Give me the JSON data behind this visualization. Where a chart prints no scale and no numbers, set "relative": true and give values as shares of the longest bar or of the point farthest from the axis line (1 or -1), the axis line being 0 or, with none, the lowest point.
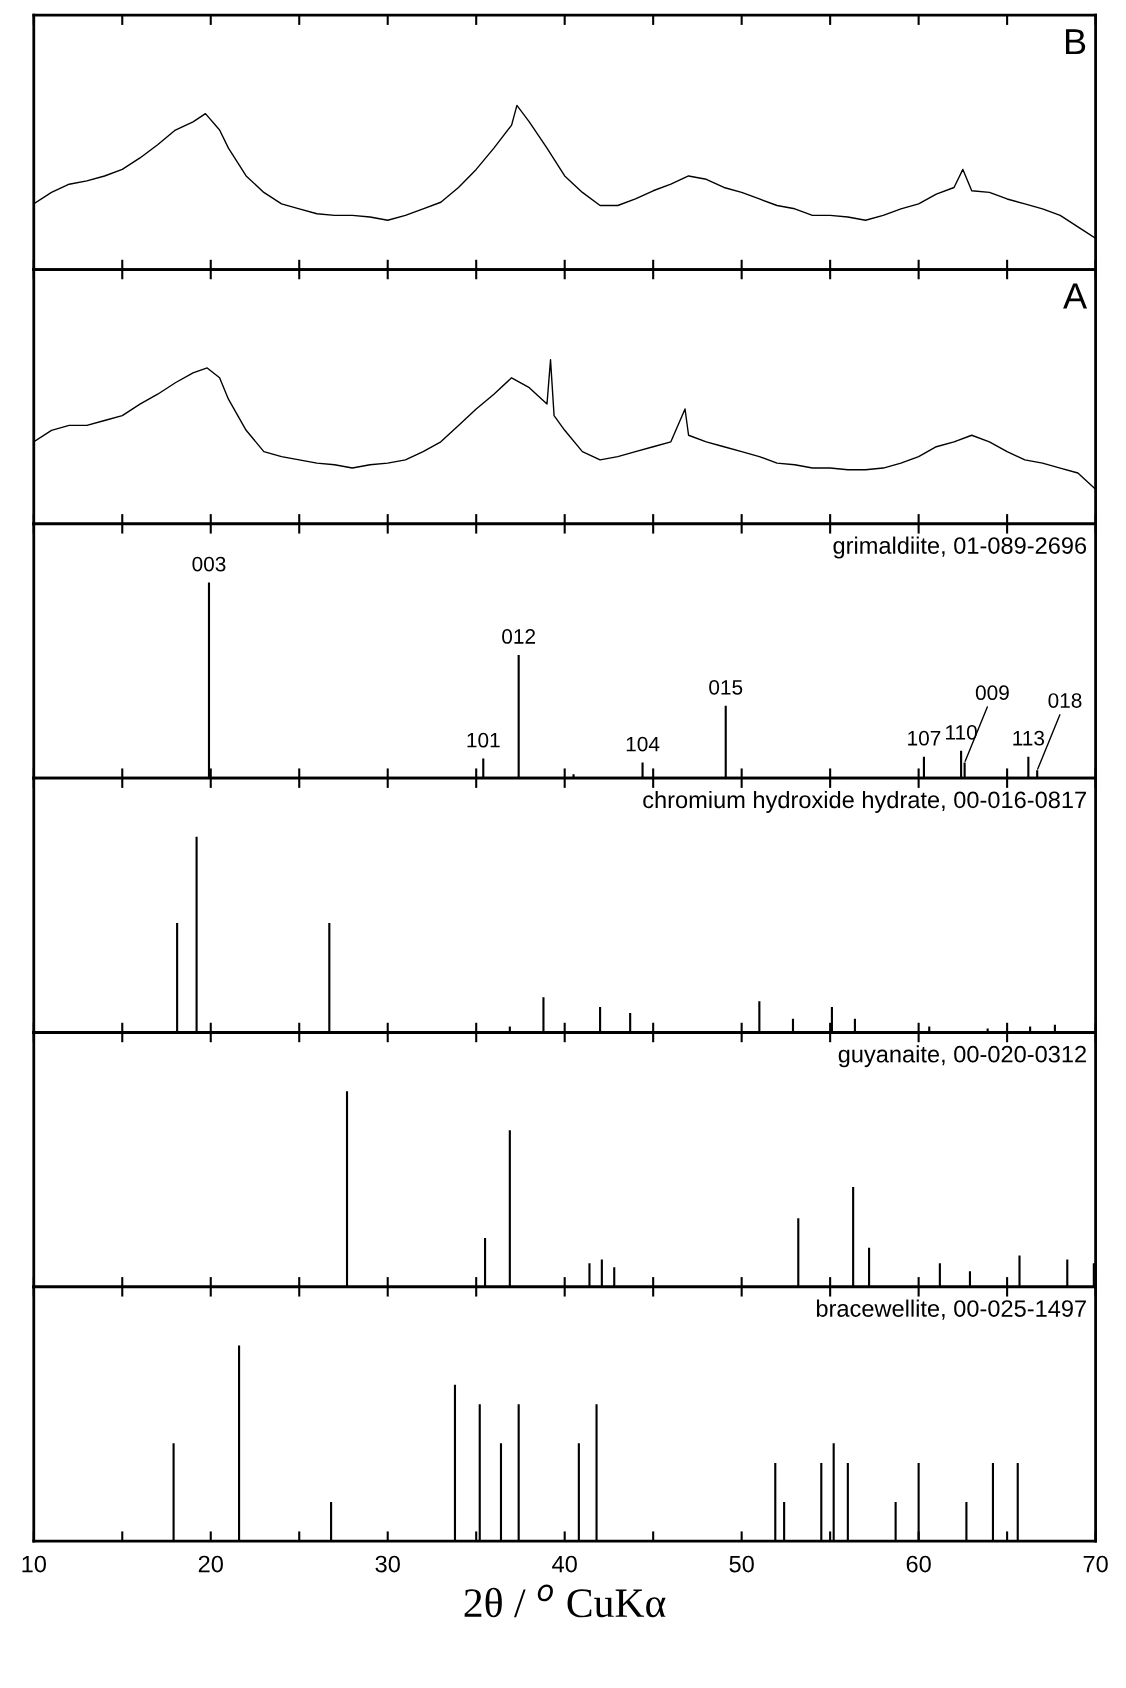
{
  "chart_data": [
    {
      "type": "line",
      "title": "B",
      "relative": true,
      "xlim": [
        10,
        70
      ],
      "xticks": [
        {
          "value": 10,
          "label": null
        },
        {
          "value": 15,
          "label": null
        },
        {
          "value": 20,
          "label": null
        },
        {
          "value": 25,
          "label": null
        },
        {
          "value": 30,
          "label": null
        },
        {
          "value": 35,
          "label": null
        },
        {
          "value": 40,
          "label": null
        },
        {
          "value": 45,
          "label": null
        },
        {
          "value": 50,
          "label": null
        },
        {
          "value": 55,
          "label": null
        },
        {
          "value": 60,
          "label": null
        },
        {
          "value": 65,
          "label": null
        },
        {
          "value": 70,
          "label": null
        }
      ],
      "tick_labels": false,
      "grid": false,
      "series": [
        {
          "color": "#000000",
          "x": [
            10,
            11,
            12,
            13,
            14,
            15,
            16,
            17,
            18,
            19,
            19.7,
            20.5,
            21,
            22,
            23,
            24,
            25,
            26,
            27,
            28,
            29,
            30,
            31,
            32,
            33,
            34,
            35,
            36,
            37,
            37.3,
            38,
            39,
            40,
            41,
            42,
            43,
            44,
            45,
            46,
            47,
            48,
            49,
            50,
            51,
            52,
            53,
            54,
            55,
            56,
            57,
            58,
            59,
            60,
            61,
            62,
            62.5,
            63,
            64,
            65,
            66,
            67,
            68,
            69,
            70
          ],
          "values": [
            0.4,
            0.47,
            0.52,
            0.54,
            0.57,
            0.61,
            0.68,
            0.76,
            0.85,
            0.9,
            0.95,
            0.85,
            0.74,
            0.57,
            0.47,
            0.4,
            0.37,
            0.34,
            0.33,
            0.33,
            0.32,
            0.3,
            0.33,
            0.37,
            0.41,
            0.5,
            0.61,
            0.74,
            0.88,
            1.0,
            0.9,
            0.74,
            0.57,
            0.47,
            0.39,
            0.39,
            0.43,
            0.48,
            0.52,
            0.57,
            0.55,
            0.5,
            0.47,
            0.43,
            0.39,
            0.37,
            0.33,
            0.33,
            0.32,
            0.3,
            0.33,
            0.37,
            0.4,
            0.46,
            0.5,
            0.61,
            0.48,
            0.47,
            0.43,
            0.4,
            0.37,
            0.33,
            0.26,
            0.19
          ]
        }
      ]
    },
    {
      "type": "line",
      "title": "A",
      "relative": true,
      "xlim": [
        10,
        70
      ],
      "xticks": [
        {
          "value": 10,
          "label": null
        },
        {
          "value": 15,
          "label": null
        },
        {
          "value": 20,
          "label": null
        },
        {
          "value": 25,
          "label": null
        },
        {
          "value": 30,
          "label": null
        },
        {
          "value": 35,
          "label": null
        },
        {
          "value": 40,
          "label": null
        },
        {
          "value": 45,
          "label": null
        },
        {
          "value": 50,
          "label": null
        },
        {
          "value": 55,
          "label": null
        },
        {
          "value": 60,
          "label": null
        },
        {
          "value": 65,
          "label": null
        },
        {
          "value": 70,
          "label": null
        }
      ],
      "tick_labels": false,
      "grid": false,
      "series": [
        {
          "color": "#000000",
          "x": [
            10,
            11,
            12,
            13,
            14,
            15,
            16,
            17,
            18,
            19,
            19.8,
            20.5,
            21,
            22,
            23,
            24,
            25,
            26,
            27,
            28,
            29,
            30,
            31,
            32,
            33,
            34,
            35,
            36,
            37,
            38,
            39,
            39.2,
            39.4,
            40,
            41,
            42,
            43,
            44,
            45,
            46,
            46.8,
            47,
            48,
            49,
            50,
            51,
            52,
            53,
            54,
            55,
            56,
            57,
            58,
            59,
            60,
            61,
            62,
            63,
            64,
            65,
            66,
            67,
            68,
            69,
            70
          ],
          "values": [
            0.5,
            0.57,
            0.6,
            0.6,
            0.63,
            0.66,
            0.73,
            0.79,
            0.86,
            0.92,
            0.95,
            0.89,
            0.76,
            0.57,
            0.44,
            0.41,
            0.39,
            0.37,
            0.36,
            0.34,
            0.36,
            0.37,
            0.39,
            0.44,
            0.5,
            0.6,
            0.7,
            0.79,
            0.89,
            0.83,
            0.73,
            1.0,
            0.66,
            0.57,
            0.44,
            0.39,
            0.41,
            0.44,
            0.47,
            0.5,
            0.7,
            0.54,
            0.5,
            0.47,
            0.44,
            0.41,
            0.37,
            0.36,
            0.34,
            0.34,
            0.33,
            0.33,
            0.34,
            0.37,
            0.41,
            0.47,
            0.5,
            0.54,
            0.5,
            0.44,
            0.39,
            0.37,
            0.34,
            0.31,
            0.21
          ]
        }
      ]
    },
    {
      "type": "bar",
      "title": "grimaldiite, 01-089-2696",
      "relative": true,
      "xlim": [
        10,
        70
      ],
      "xticks": [
        {
          "value": 10,
          "label": null
        },
        {
          "value": 15,
          "label": null
        },
        {
          "value": 20,
          "label": null
        },
        {
          "value": 25,
          "label": null
        },
        {
          "value": 30,
          "label": null
        },
        {
          "value": 35,
          "label": null
        },
        {
          "value": 40,
          "label": null
        },
        {
          "value": 45,
          "label": null
        },
        {
          "value": 50,
          "label": null
        },
        {
          "value": 55,
          "label": null
        },
        {
          "value": 60,
          "label": null
        },
        {
          "value": 65,
          "label": null
        },
        {
          "value": 70,
          "label": null
        }
      ],
      "tick_labels": false,
      "grid": false,
      "series": [
        {
          "color": "#000000",
          "x": [
            19.9,
            35.4,
            37.4,
            40.5,
            44.4,
            49.1,
            60.3,
            62.4,
            62.6,
            66.2,
            66.7
          ],
          "values": [
            1.0,
            0.1,
            0.63,
            0.02,
            0.08,
            0.37,
            0.11,
            0.14,
            0.08,
            0.11,
            0.04
          ]
        }
      ],
      "annotations": [
        {
          "text": "003",
          "x": 19.9,
          "y": 1.0
        },
        {
          "text": "101",
          "x": 35.4,
          "y": 0.1
        },
        {
          "text": "012",
          "x": 37.4,
          "y": 0.63
        },
        {
          "text": "104",
          "x": 44.4,
          "y": 0.08
        },
        {
          "text": "015",
          "x": 49.1,
          "y": 0.37
        },
        {
          "text": "107",
          "x": 60.3,
          "y": 0.11
        },
        {
          "text": "110",
          "x": 62.4,
          "y": 0.14
        },
        {
          "text": "009",
          "x": 62.6,
          "y": 0.08
        },
        {
          "text": "113",
          "x": 66.2,
          "y": 0.11
        },
        {
          "text": "018",
          "x": 66.7,
          "y": 0.04
        }
      ]
    },
    {
      "type": "bar",
      "title": "chromium hydroxide hydrate, 00-016-0817",
      "relative": true,
      "xlim": [
        10,
        70
      ],
      "xticks": [
        {
          "value": 10,
          "label": null
        },
        {
          "value": 15,
          "label": null
        },
        {
          "value": 20,
          "label": null
        },
        {
          "value": 25,
          "label": null
        },
        {
          "value": 30,
          "label": null
        },
        {
          "value": 35,
          "label": null
        },
        {
          "value": 40,
          "label": null
        },
        {
          "value": 45,
          "label": null
        },
        {
          "value": 50,
          "label": null
        },
        {
          "value": 55,
          "label": null
        },
        {
          "value": 60,
          "label": null
        },
        {
          "value": 65,
          "label": null
        },
        {
          "value": 70,
          "label": null
        }
      ],
      "tick_labels": false,
      "grid": false,
      "series": [
        {
          "color": "#000000",
          "x": [
            18.1,
            19.2,
            26.7,
            36.9,
            38.8,
            42.0,
            43.7,
            51.0,
            52.9,
            55.1,
            56.4,
            60.6,
            63.9,
            66.3,
            67.7
          ],
          "values": [
            0.56,
            1.0,
            0.56,
            0.03,
            0.18,
            0.13,
            0.1,
            0.16,
            0.07,
            0.13,
            0.07,
            0.03,
            0.02,
            0.03,
            0.04
          ]
        }
      ]
    },
    {
      "type": "bar",
      "title": "guyanaite, 00-020-0312",
      "relative": true,
      "xlim": [
        10,
        70
      ],
      "xticks": [
        {
          "value": 10,
          "label": null
        },
        {
          "value": 15,
          "label": null
        },
        {
          "value": 20,
          "label": null
        },
        {
          "value": 25,
          "label": null
        },
        {
          "value": 30,
          "label": null
        },
        {
          "value": 35,
          "label": null
        },
        {
          "value": 40,
          "label": null
        },
        {
          "value": 45,
          "label": null
        },
        {
          "value": 50,
          "label": null
        },
        {
          "value": 55,
          "label": null
        },
        {
          "value": 60,
          "label": null
        },
        {
          "value": 65,
          "label": null
        },
        {
          "value": 70,
          "label": null
        }
      ],
      "tick_labels": false,
      "grid": false,
      "series": [
        {
          "color": "#000000",
          "x": [
            27.7,
            35.5,
            36.9,
            41.4,
            42.1,
            42.8,
            53.2,
            56.3,
            57.2,
            61.2,
            62.9,
            65.7,
            68.4,
            69.9
          ],
          "values": [
            1.0,
            0.25,
            0.8,
            0.12,
            0.14,
            0.1,
            0.35,
            0.51,
            0.2,
            0.12,
            0.08,
            0.16,
            0.14,
            0.12
          ]
        }
      ]
    },
    {
      "type": "bar",
      "title": "bracewellite, 00-025-1497",
      "relative": true,
      "xlabel": "2θ / $^{o}$ CuKα",
      "xlim": [
        10,
        70
      ],
      "xticks": [
        10,
        {
          "value": 15,
          "label": null
        },
        20,
        {
          "value": 25,
          "label": null
        },
        30,
        {
          "value": 35,
          "label": null
        },
        40,
        {
          "value": 45,
          "label": null
        },
        50,
        {
          "value": 55,
          "label": null
        },
        60,
        {
          "value": 65,
          "label": null
        },
        70
      ],
      "tick_labels": "x",
      "grid": false,
      "series": [
        {
          "color": "#000000",
          "x": [
            17.9,
            21.6,
            26.8,
            33.8,
            35.2,
            36.4,
            37.4,
            40.8,
            41.8,
            51.9,
            52.4,
            54.5,
            55.2,
            56.0,
            58.7,
            60.0,
            62.7,
            64.2,
            65.6
          ],
          "values": [
            0.5,
            1.0,
            0.2,
            0.8,
            0.7,
            0.5,
            0.7,
            0.5,
            0.7,
            0.4,
            0.2,
            0.4,
            0.5,
            0.4,
            0.2,
            0.4,
            0.2,
            0.4,
            0.4
          ]
        }
      ]
    }
  ]
}
